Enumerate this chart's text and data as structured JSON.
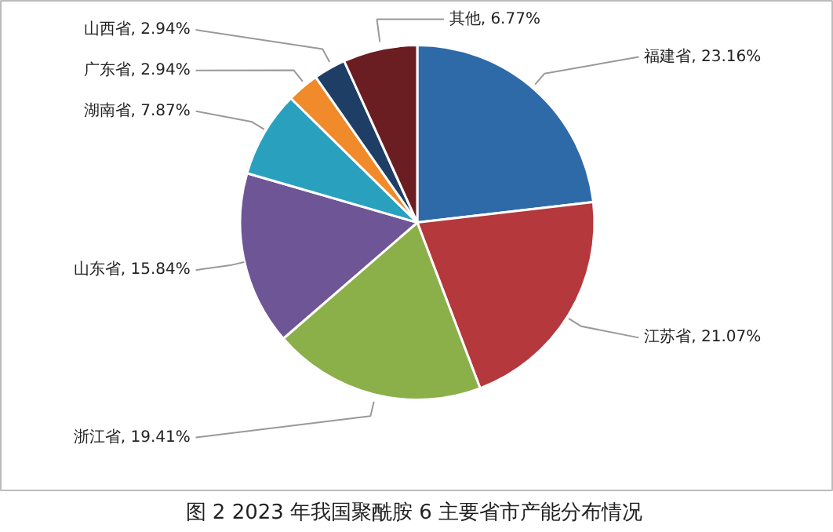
{
  "chart_data": {
    "type": "pie",
    "title": "图 2  2023 年我国聚酰胺 6 主要省市产能分布情况",
    "categories": [
      "福建省",
      "江苏省",
      "浙江省",
      "山东省",
      "湖南省",
      "广东省",
      "山西省",
      "其他"
    ],
    "values": [
      23.16,
      21.07,
      19.41,
      15.84,
      7.87,
      2.94,
      2.94,
      6.77
    ],
    "value_labels": [
      "23.16%",
      "21.07%",
      "19.41%",
      "15.84%",
      "7.87%",
      "2.94%",
      "2.94%",
      "6.77%"
    ],
    "colors": [
      "#2e6aa8",
      "#b5383c",
      "#8bb04a",
      "#6e5596",
      "#2aa0bf",
      "#f08a2a",
      "#1f3e66",
      "#6b1e22"
    ]
  }
}
